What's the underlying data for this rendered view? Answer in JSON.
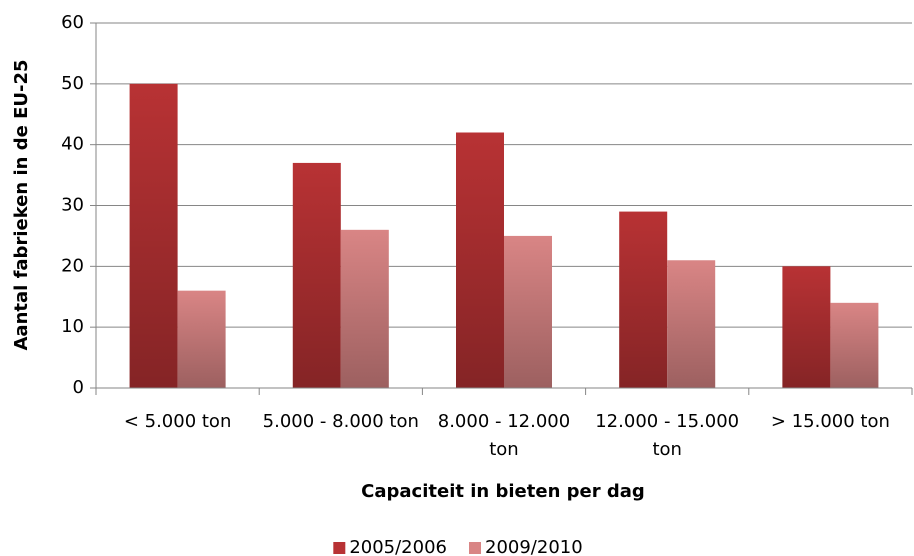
{
  "chart_data": {
    "type": "bar",
    "categories": [
      "< 5.000 ton",
      "5.000 - 8.000 ton",
      "8.000 - 12.000 ton",
      "12.000 - 15.000 ton",
      "> 15.000 ton"
    ],
    "series": [
      {
        "name": "2005/2006",
        "color": "#b83234",
        "values": [
          50,
          37,
          42,
          29,
          20
        ]
      },
      {
        "name": "2009/2010",
        "color": "#d98585",
        "values": [
          16,
          26,
          25,
          21,
          14
        ]
      }
    ],
    "xlabel": "Capaciteit in bieten per dag",
    "ylabel": "Aantal fabrieken in de EU-25",
    "ylim": [
      0,
      60
    ],
    "yticks": [
      0,
      10,
      20,
      30,
      40,
      50,
      60
    ],
    "grid": true,
    "legend": "bottom"
  }
}
